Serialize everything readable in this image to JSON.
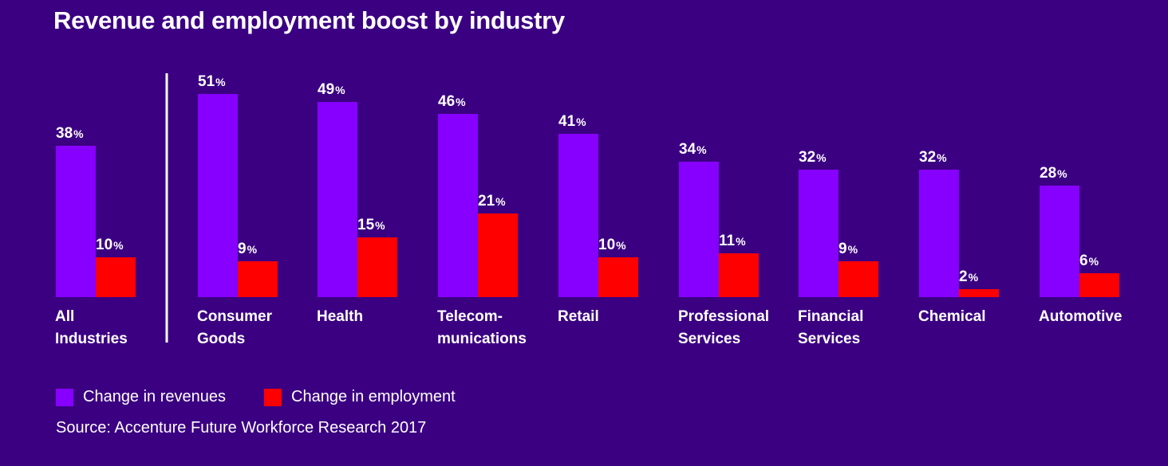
{
  "title": "Revenue and employment boost by industry",
  "legend": {
    "revenues_label": "Change in revenues",
    "employment_label": "Change in employment"
  },
  "source": "Source: Accenture Future Workforce Research 2017",
  "colors": {
    "background": "#3b0082",
    "revenues": "#8700ff",
    "employment": "#ff0000",
    "text": "#ffffff"
  },
  "chart_data": {
    "type": "bar",
    "title": "Revenue and employment boost by industry",
    "xlabel": "",
    "ylabel": "",
    "value_suffix": "%",
    "ylim": [
      0,
      55
    ],
    "grid": false,
    "legend_position": "bottom-left",
    "categories": [
      [
        "All",
        "Industries"
      ],
      [
        "Consumer",
        "Goods"
      ],
      [
        "Health"
      ],
      [
        "Telecom-",
        "munications"
      ],
      [
        "Retail"
      ],
      [
        "Professional",
        "Services"
      ],
      [
        "Financial",
        "Services"
      ],
      [
        "Chemical"
      ],
      [
        "Automotive"
      ]
    ],
    "series": [
      {
        "name": "Change in revenues",
        "values": [
          38,
          51,
          49,
          46,
          41,
          34,
          32,
          32,
          28
        ]
      },
      {
        "name": "Change in employment",
        "values": [
          10,
          9,
          15,
          21,
          10,
          11,
          9,
          2,
          6
        ]
      }
    ],
    "separator_after_index": 0
  }
}
